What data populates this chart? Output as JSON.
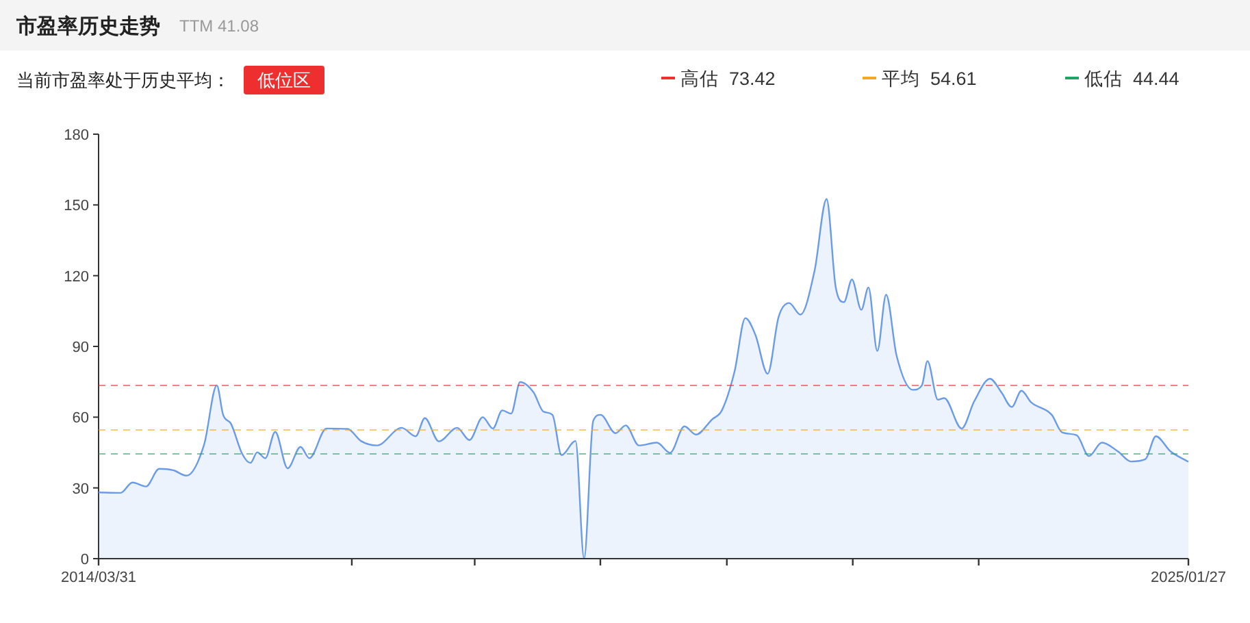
{
  "chart_data": {
    "type": "area",
    "title": "市盈率历史走势",
    "subtitle": "TTM 41.08",
    "annotations": [
      "当前市盈率处于历史平均：",
      "低位区"
    ],
    "x": [
      "2014-03-31",
      "2014-06-19",
      "2014-08-01",
      "2014-09-19",
      "2014-11-06",
      "2014-12-27",
      "2015-02-13",
      "2015-04-18",
      "2015-06-03",
      "2015-06-26",
      "2015-07-25",
      "2015-09-03",
      "2015-10-03",
      "2015-10-28",
      "2015-11-26",
      "2016-01-01",
      "2016-02-15",
      "2016-04-02",
      "2016-05-04",
      "2016-07-05",
      "2016-09-20",
      "2016-11-07",
      "2017-01-04",
      "2017-04-04",
      "2017-05-25",
      "2017-06-27",
      "2017-08-17",
      "2017-10-22",
      "2017-12-06",
      "2018-01-23",
      "2018-03-01",
      "2018-04-04",
      "2018-05-06",
      "2018-06-08",
      "2018-07-26",
      "2018-09-01",
      "2018-10-03",
      "2018-11-05",
      "2018-12-26",
      "2019-01-26",
      "2019-02-28",
      "2019-03-27",
      "2019-05-20",
      "2019-06-26",
      "2019-08-13",
      "2019-10-17",
      "2019-12-04",
      "2020-01-25",
      "2020-03-07",
      "2020-05-04",
      "2020-06-09",
      "2020-07-25",
      "2020-09-02",
      "2020-10-09",
      "2020-11-22",
      "2021-01-01",
      "2021-02-08",
      "2021-03-21",
      "2021-05-11",
      "2021-06-24",
      "2021-07-27",
      "2021-08-26",
      "2021-09-24",
      "2021-10-28",
      "2021-11-23",
      "2021-12-25",
      "2022-01-26",
      "2022-03-05",
      "2022-05-03",
      "2022-06-05",
      "2022-06-25",
      "2022-08-02",
      "2022-08-25",
      "2022-10-27",
      "2022-12-12",
      "2023-02-07",
      "2023-03-20",
      "2023-04-27",
      "2023-06-01",
      "2023-07-07",
      "2023-09-19",
      "2023-10-26",
      "2023-12-19",
      "2024-02-01",
      "2024-03-19",
      "2024-05-16",
      "2024-07-03",
      "2024-08-24",
      "2024-10-01",
      "2024-11-23",
      "2025-01-27"
    ],
    "series": [
      {
        "color": "#6a9be8",
        "values": [
          28.1,
          27.9,
          32.3,
          30.6,
          38.1,
          37.5,
          35.2,
          48.4,
          73.5,
          61,
          57.1,
          44.5,
          40.6,
          45.1,
          42.6,
          53.8,
          38.3,
          47.4,
          42.6,
          55.2,
          55,
          49.9,
          48,
          55.5,
          51.9,
          59.6,
          49.7,
          55.5,
          50.3,
          60,
          55.2,
          62.9,
          61.5,
          74.9,
          70.6,
          62.3,
          61,
          43.9,
          49.9,
          0,
          58.4,
          61,
          53.2,
          56.5,
          48,
          49.2,
          44.9,
          56.1,
          52.6,
          59,
          62.9,
          79.4,
          102,
          94.8,
          78.4,
          102.6,
          108.4,
          103.5,
          121.9,
          152.5,
          115.2,
          108.8,
          118.4,
          105.5,
          115,
          88.1,
          111.9,
          86.1,
          71.6,
          73.5,
          83.8,
          67.4,
          68.1,
          55.2,
          66.8,
          76.3,
          70.6,
          64.3,
          71.2,
          66.2,
          61,
          53.6,
          52.3,
          43.5,
          49.2,
          45.5,
          41.2,
          42.2,
          51.9,
          45.5,
          41.08
        ]
      }
    ],
    "xlim": [
      "2014-03-31",
      "2025-01-27"
    ],
    "xticks": [
      {
        "value": "2014-03-31",
        "label": "2014/03/31"
      },
      {
        "value": "2016-10-05",
        "label": null
      },
      {
        "value": "2017-12-25",
        "label": null
      },
      {
        "value": "2019-03-26",
        "label": null
      },
      {
        "value": "2020-06-27",
        "label": null
      },
      {
        "value": "2021-09-27",
        "label": null
      },
      {
        "value": "2022-12-28",
        "label": null
      },
      {
        "value": "2025-01-27",
        "label": "2025/01/27"
      }
    ],
    "ylim": [
      0,
      180
    ],
    "yticks": [
      0,
      30,
      60,
      90,
      120,
      150,
      180
    ],
    "ref_lines": [
      {
        "axis": "y",
        "value": 73.42,
        "label": "高估  73.42",
        "color": "#ee2f2f",
        "line_style": "dashed"
      },
      {
        "axis": "y",
        "value": 54.61,
        "label": "平均  54.61",
        "color": "#f5a623",
        "line_style": "dashed"
      },
      {
        "axis": "y",
        "value": 44.44,
        "label": "低估  44.44",
        "color": "#1fa463",
        "line_style": "dashed"
      }
    ],
    "grid": false,
    "legend": "top right",
    "line_style": "solid",
    "marker": "none"
  }
}
